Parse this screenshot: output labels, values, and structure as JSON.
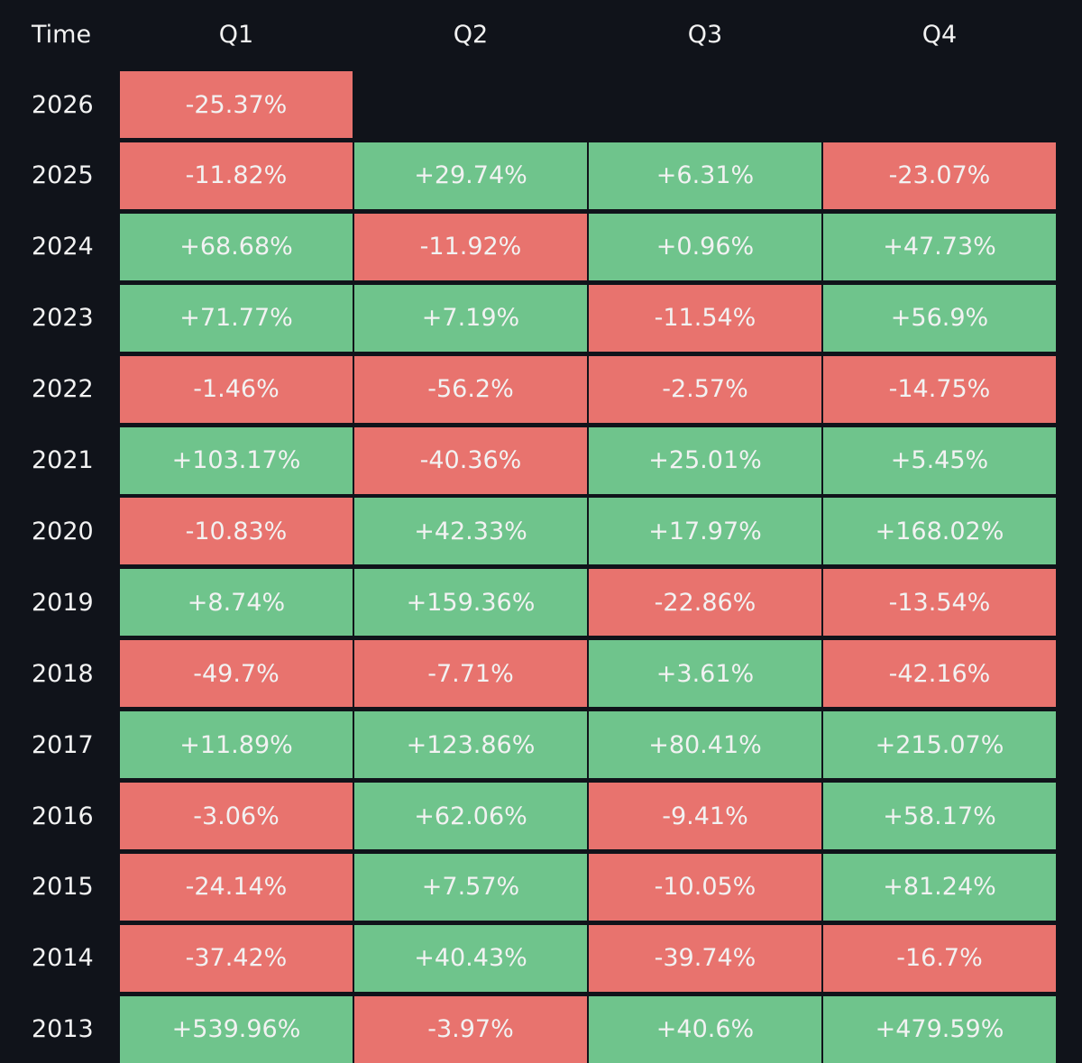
{
  "table": {
    "header": [
      "Time",
      "Q1",
      "Q2",
      "Q3",
      "Q4"
    ],
    "rows": [
      [
        "2026",
        "-25.37%"
      ],
      [
        "2025",
        "-11.82%",
        "+29.74%",
        "+6.31%",
        "-23.07%"
      ],
      [
        "2024",
        "+68.68%",
        "-11.92%",
        "+0.96%",
        "+47.73%"
      ],
      [
        "2023",
        "+71.77%",
        "+7.19%",
        "-11.54%",
        "+56.9%"
      ],
      [
        "2022",
        "-1.46%",
        "-56.2%",
        "-2.57%",
        "-14.75%"
      ],
      [
        "2021",
        "+103.17%",
        "-40.36%",
        "+25.01%",
        "+5.45%"
      ],
      [
        "2020",
        "-10.83%",
        "+42.33%",
        "+17.97%",
        "+168.02%"
      ],
      [
        "2019",
        "+8.74%",
        "+159.36%",
        "-22.86%",
        "-13.54%"
      ],
      [
        "2018",
        "-49.7%",
        "-7.71%",
        "+3.61%",
        "-42.16%"
      ],
      [
        "2017",
        "+11.89%",
        "+123.86%",
        "+80.41%",
        "+215.07%"
      ],
      [
        "2016",
        "-3.06%",
        "+62.06%",
        "-9.41%",
        "+58.17%"
      ],
      [
        "2015",
        "-24.14%",
        "+7.57%",
        "-10.05%",
        "+81.24%"
      ],
      [
        "2014",
        "-37.42%",
        "+40.43%",
        "-39.74%",
        "-16.7%"
      ],
      [
        "2013",
        "+539.96%",
        "-3.97%",
        "+40.6%",
        "+479.59%"
      ]
    ],
    "colors": {
      "positive": "#6fc48c",
      "negative": "#e8736e"
    }
  }
}
